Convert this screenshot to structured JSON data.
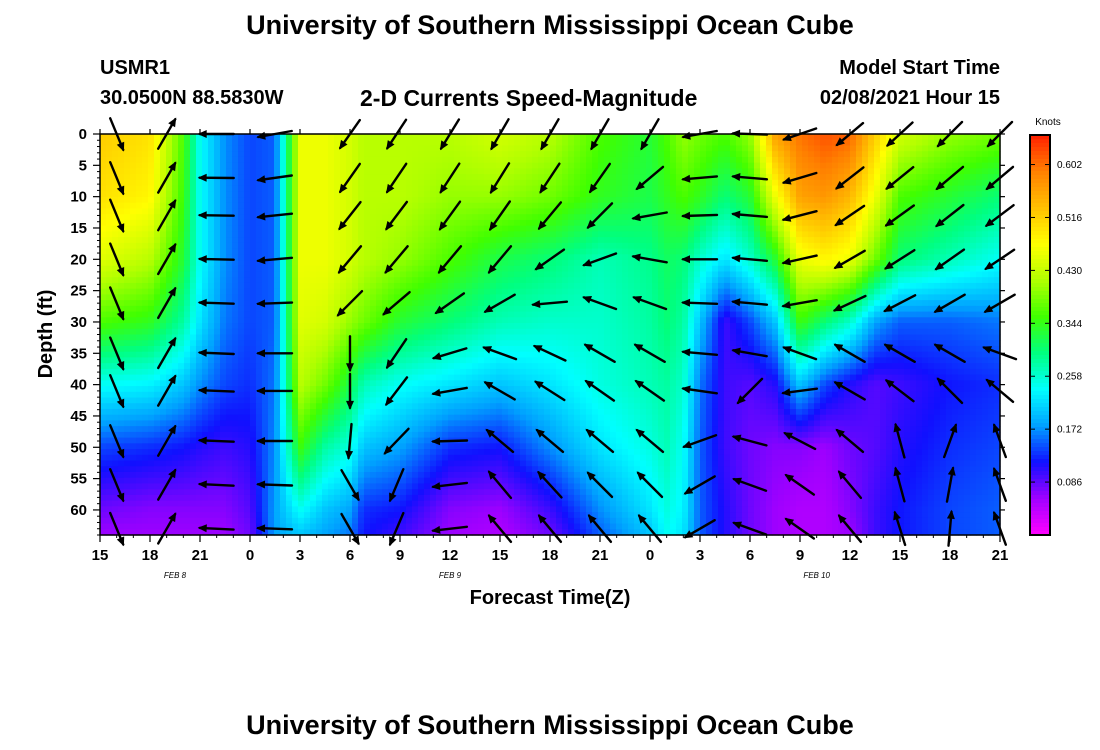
{
  "header": {
    "title": "University of Southern Mississippi Ocean Cube",
    "station_id": "USMR1",
    "station_coords": "30.0500N 88.5830W",
    "plot_title": "2-D Currents Speed-Magnitude",
    "model_start_label": "Model Start Time",
    "model_start_value": "02/08/2021 Hour 15"
  },
  "footer": {
    "title": "University of Southern Mississippi Ocean Cube"
  },
  "chart_data": {
    "type": "heatmap",
    "xlabel": "Forecast Time(Z)",
    "ylabel": "Depth (ft)",
    "x_ticks": [
      "15",
      "18",
      "21",
      "0",
      "3",
      "6",
      "9",
      "12",
      "15",
      "18",
      "21",
      "0",
      "3",
      "6",
      "9",
      "12",
      "15",
      "18",
      "21"
    ],
    "date_labels": [
      {
        "text": "FEB 8",
        "hour_index": 4.5
      },
      {
        "text": "FEB 9",
        "hour_index": 21
      },
      {
        "text": "FEB 10",
        "hour_index": 43
      }
    ],
    "x_range_hours": [
      0,
      54
    ],
    "y_ticks": [
      0,
      5,
      10,
      15,
      20,
      25,
      30,
      35,
      40,
      45,
      50,
      55,
      60
    ],
    "ylim": [
      0,
      64
    ],
    "colorbar": {
      "unit": "Knots",
      "ticks": [
        "0.602",
        "0.516",
        "0.430",
        "0.344",
        "0.258",
        "0.172",
        "0.086"
      ],
      "range": [
        0,
        0.65
      ],
      "colors": [
        "#ff00ff",
        "#a000ff",
        "#1010ff",
        "#00a0ff",
        "#00ffff",
        "#00ff80",
        "#40ff00",
        "#b0ff00",
        "#ffff00",
        "#ffc000",
        "#ff8000",
        "#ff2000"
      ]
    },
    "grid": false,
    "legend": "right",
    "vector_times_hours": [
      1,
      4,
      7,
      10.5,
      15,
      17.8,
      21,
      24,
      27,
      30,
      33,
      36,
      39,
      42,
      45,
      48,
      51,
      54
    ],
    "vector_depths_ft": [
      0,
      7,
      13,
      20,
      27,
      35,
      41,
      49,
      56,
      63
    ],
    "speed_time_nodes_hours": [
      0,
      3,
      5,
      6,
      7.5,
      9,
      10.5,
      12,
      13.5,
      15,
      15.8,
      18,
      21,
      24,
      27,
      30,
      33,
      34,
      35,
      36,
      37.5,
      39,
      40.5,
      42,
      43.5,
      45,
      46.5,
      48,
      51,
      54
    ],
    "speed_depth_nodes_ft": [
      0,
      10,
      20,
      30,
      40,
      50,
      60,
      64
    ],
    "speed_knots": [
      [
        0.52,
        0.5,
        0.45,
        0.36,
        0.24,
        0.14,
        0.08,
        0.06
      ],
      [
        0.5,
        0.48,
        0.42,
        0.34,
        0.23,
        0.13,
        0.07,
        0.06
      ],
      [
        0.36,
        0.35,
        0.33,
        0.28,
        0.2,
        0.12,
        0.07,
        0.06
      ],
      [
        0.24,
        0.24,
        0.24,
        0.22,
        0.17,
        0.11,
        0.07,
        0.06
      ],
      [
        0.17,
        0.17,
        0.17,
        0.16,
        0.14,
        0.1,
        0.07,
        0.06
      ],
      [
        0.14,
        0.14,
        0.14,
        0.14,
        0.13,
        0.11,
        0.09,
        0.08
      ],
      [
        0.15,
        0.15,
        0.15,
        0.15,
        0.16,
        0.17,
        0.18,
        0.18
      ],
      [
        0.46,
        0.46,
        0.46,
        0.45,
        0.42,
        0.35,
        0.24,
        0.2
      ],
      [
        0.46,
        0.46,
        0.46,
        0.44,
        0.38,
        0.28,
        0.2,
        0.18
      ],
      [
        0.44,
        0.44,
        0.44,
        0.4,
        0.32,
        0.25,
        0.18,
        0.16
      ],
      [
        0.42,
        0.42,
        0.42,
        0.38,
        0.27,
        0.2,
        0.13,
        0.12
      ],
      [
        0.42,
        0.42,
        0.4,
        0.33,
        0.24,
        0.18,
        0.12,
        0.1
      ],
      [
        0.42,
        0.4,
        0.36,
        0.3,
        0.22,
        0.13,
        0.07,
        0.06
      ],
      [
        0.44,
        0.4,
        0.32,
        0.27,
        0.2,
        0.12,
        0.06,
        0.05
      ],
      [
        0.42,
        0.38,
        0.3,
        0.26,
        0.22,
        0.17,
        0.1,
        0.08
      ],
      [
        0.36,
        0.34,
        0.27,
        0.26,
        0.25,
        0.22,
        0.17,
        0.15
      ],
      [
        0.33,
        0.32,
        0.29,
        0.28,
        0.27,
        0.25,
        0.22,
        0.2
      ],
      [
        0.36,
        0.34,
        0.31,
        0.3,
        0.28,
        0.27,
        0.25,
        0.24
      ],
      [
        0.4,
        0.36,
        0.3,
        0.28,
        0.26,
        0.24,
        0.23,
        0.22
      ],
      [
        0.38,
        0.34,
        0.26,
        0.2,
        0.16,
        0.15,
        0.15,
        0.15
      ],
      [
        0.36,
        0.3,
        0.22,
        0.1,
        0.1,
        0.1,
        0.11,
        0.11
      ],
      [
        0.4,
        0.33,
        0.26,
        0.14,
        0.09,
        0.08,
        0.08,
        0.08
      ],
      [
        0.56,
        0.46,
        0.33,
        0.2,
        0.11,
        0.07,
        0.06,
        0.06
      ],
      [
        0.6,
        0.56,
        0.46,
        0.35,
        0.2,
        0.07,
        0.05,
        0.05
      ],
      [
        0.62,
        0.57,
        0.48,
        0.3,
        0.14,
        0.06,
        0.05,
        0.05
      ],
      [
        0.61,
        0.54,
        0.46,
        0.26,
        0.11,
        0.08,
        0.07,
        0.06
      ],
      [
        0.52,
        0.46,
        0.38,
        0.18,
        0.09,
        0.09,
        0.1,
        0.1
      ],
      [
        0.44,
        0.36,
        0.3,
        0.15,
        0.1,
        0.11,
        0.12,
        0.12
      ],
      [
        0.4,
        0.33,
        0.27,
        0.15,
        0.12,
        0.13,
        0.14,
        0.14
      ],
      [
        0.38,
        0.3,
        0.24,
        0.16,
        0.13,
        0.14,
        0.15,
        0.15
      ]
    ],
    "vector_direction_nodes_hours": [
      0,
      4,
      6,
      10.5,
      15,
      24,
      30,
      33,
      36,
      39,
      45,
      51,
      54
    ],
    "vector_directions_deg": [
      [
        200,
        200,
        200,
        200,
        200,
        200,
        200,
        200,
        200,
        200
      ],
      [
        30,
        30,
        30,
        30,
        30,
        30,
        30,
        30,
        30,
        30
      ],
      [
        273,
        273,
        273,
        273,
        273,
        273,
        273,
        273,
        273,
        273
      ],
      [
        260,
        262,
        264,
        265,
        268,
        270,
        270,
        270,
        272,
        272
      ],
      [
        215,
        215,
        218,
        220,
        225,
        180,
        180,
        185,
        150,
        150
      ],
      [
        210,
        212,
        215,
        220,
        240,
        290,
        300,
        310,
        320,
        320
      ],
      [
        210,
        215,
        225,
        250,
        290,
        300,
        305,
        310,
        315,
        320
      ],
      [
        210,
        230,
        260,
        280,
        290,
        300,
        305,
        310,
        315,
        320
      ],
      [
        260,
        265,
        268,
        270,
        272,
        275,
        278,
        250,
        240,
        240
      ],
      [
        272,
        275,
        275,
        275,
        275,
        280,
        225,
        285,
        290,
        290
      ],
      [
        230,
        232,
        236,
        240,
        245,
        300,
        300,
        310,
        320,
        320
      ],
      [
        225,
        230,
        232,
        235,
        240,
        300,
        315,
        20,
        10,
        5
      ],
      [
        225,
        230,
        233,
        236,
        240,
        290,
        310,
        340,
        340,
        340
      ]
    ]
  }
}
